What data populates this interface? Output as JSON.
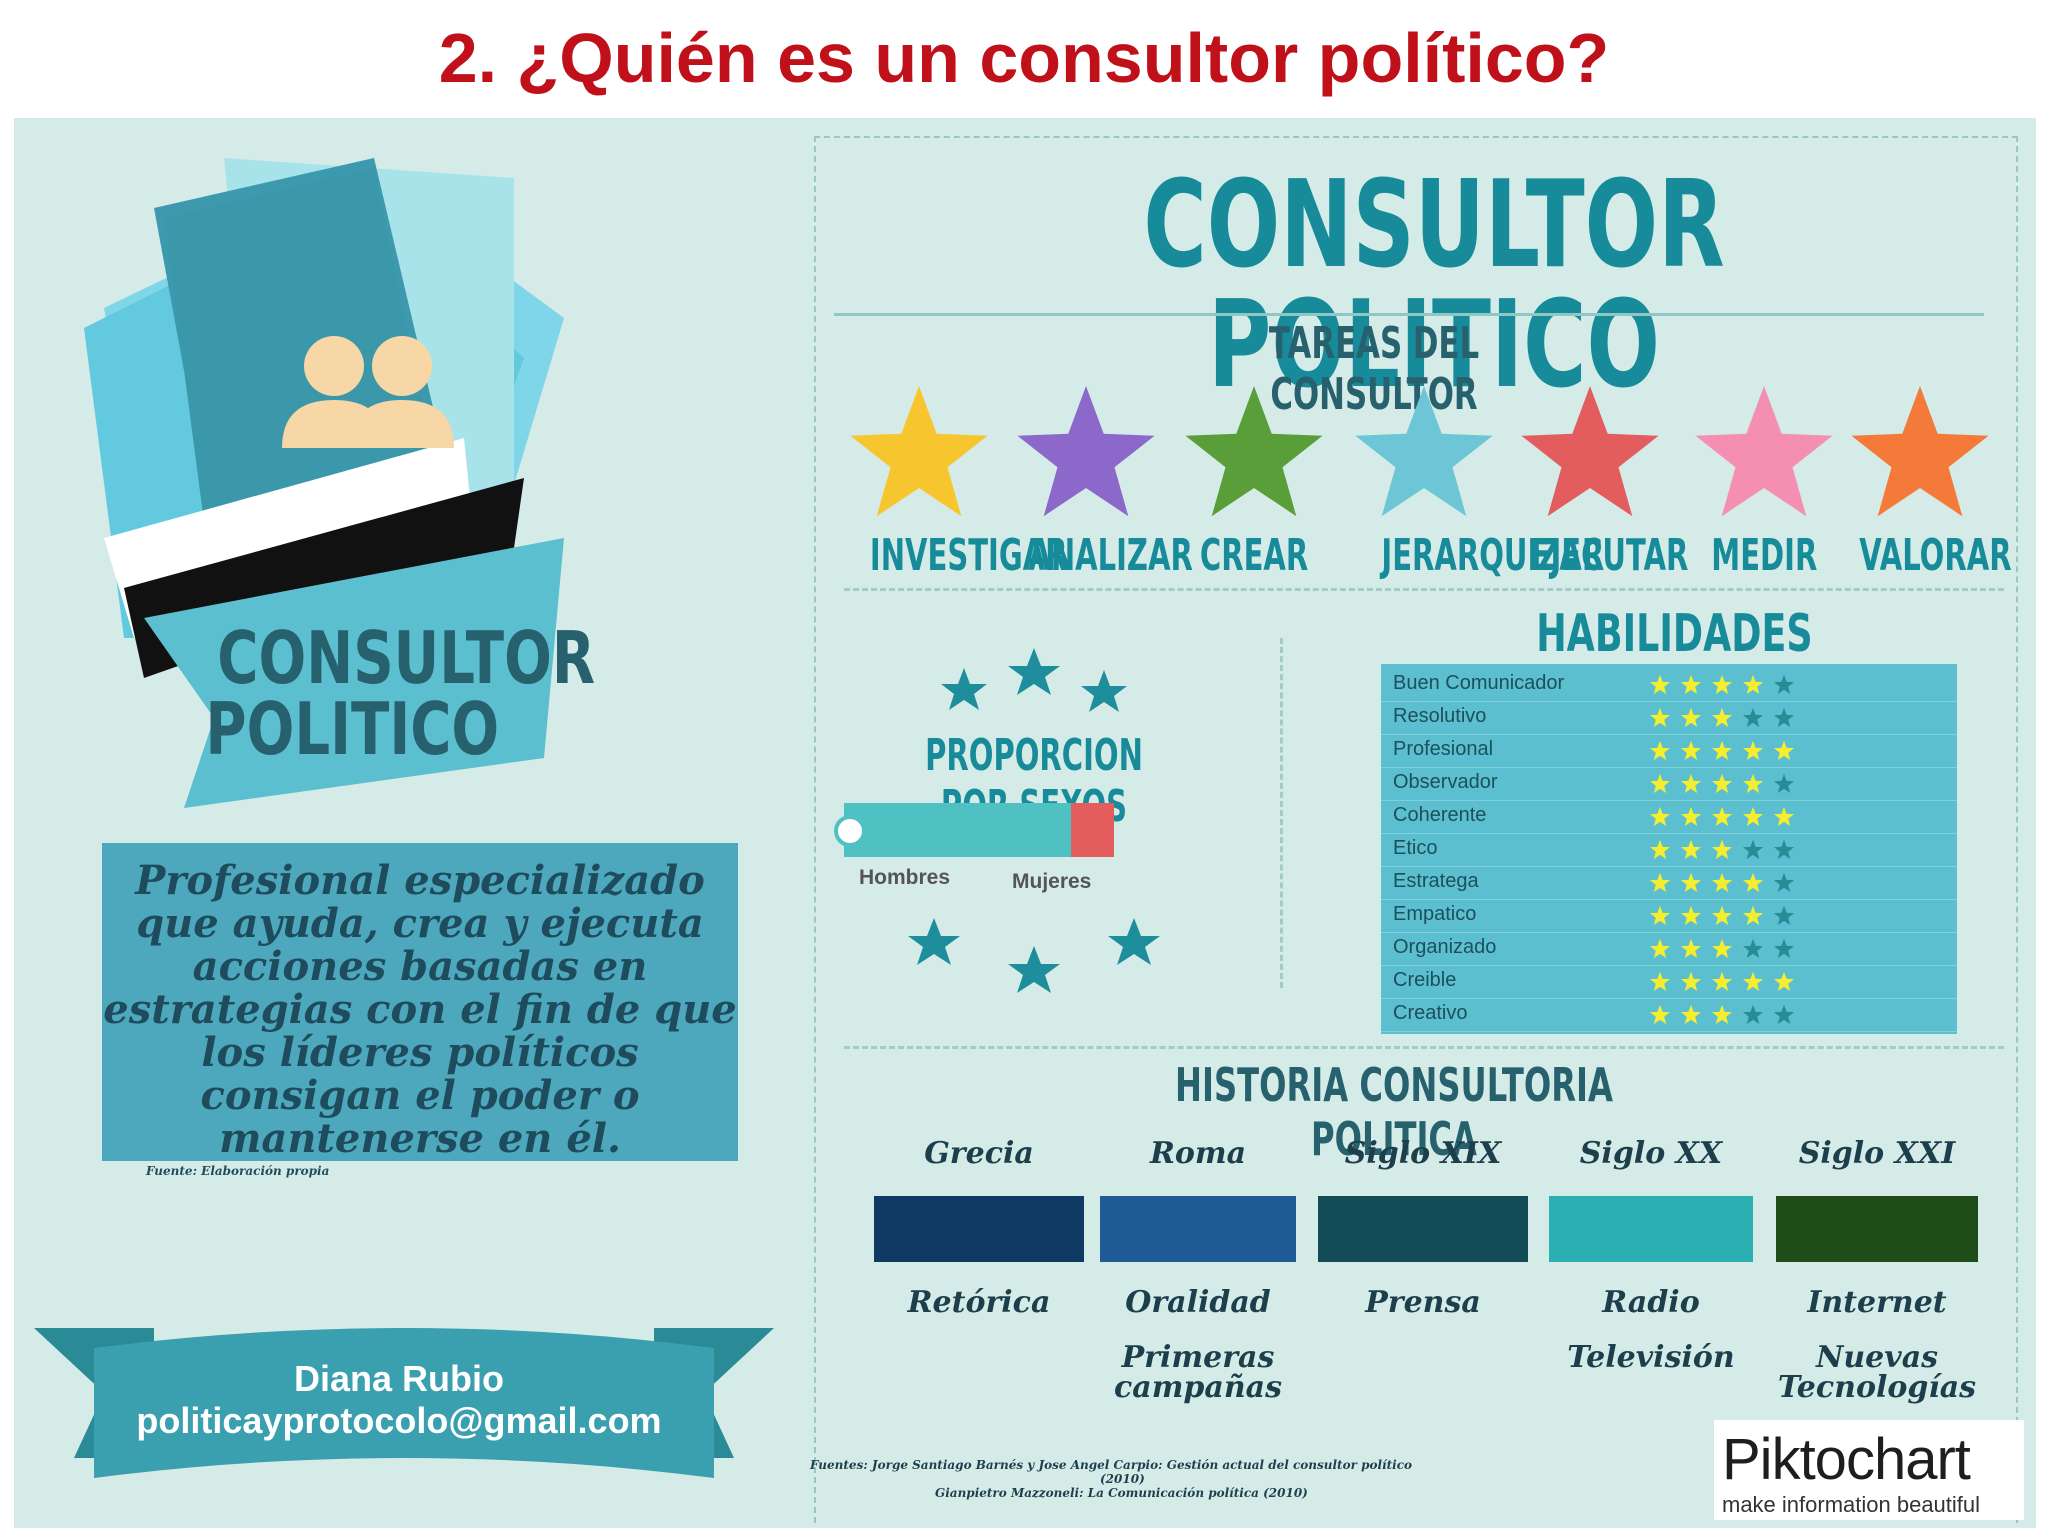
{
  "slide_title": "2. ¿Quién es un consultor político?",
  "left": {
    "folder_title_line1": "CONSULTOR",
    "folder_title_line2": "POLITICO",
    "description_lines": [
      "Profesional especializado",
      "que ayuda, crea y ejecuta",
      "acciones basadas en",
      "estrategias con el fin de que",
      "los líderes políticos",
      "consigan el poder o",
      "mantenerse en él."
    ],
    "source": "Fuente: Elaboración propia",
    "author_name": "Diana Rubio",
    "author_email": "politicayprotocolo@gmail.com"
  },
  "main_title": "CONSULTOR POLITICO",
  "tasks": {
    "heading": "TAREAS DEL CONSULTOR",
    "items": [
      {
        "label": "INVESTIGAR",
        "color": "#f7c62f"
      },
      {
        "label": "ANALIZAR",
        "color": "#8b68c9"
      },
      {
        "label": "CREAR",
        "color": "#5a9e3a"
      },
      {
        "label": "JERARQUIZAR",
        "color": "#6cc6d6"
      },
      {
        "label": "EJECUTAR",
        "color": "#e35d5f"
      },
      {
        "label": "MEDIR",
        "color": "#f48fb1"
      },
      {
        "label": "VALORAR",
        "color": "#f47a3a"
      }
    ]
  },
  "gender": {
    "heading": "PROPORCION POR SEXOS",
    "men_label": "Hombres",
    "women_label": "Mujeres",
    "men_share": 0.84,
    "men_color": "#4fc1c2",
    "women_color": "#e35d5f"
  },
  "skills": {
    "heading": "HABILIDADES",
    "max": 5,
    "items": [
      {
        "name": "Buen Comunicador",
        "rating": 4
      },
      {
        "name": "Resolutivo",
        "rating": 3
      },
      {
        "name": "Profesional",
        "rating": 5
      },
      {
        "name": "Observador",
        "rating": 4
      },
      {
        "name": "Coherente",
        "rating": 5
      },
      {
        "name": "Etico",
        "rating": 3
      },
      {
        "name": "Estratega",
        "rating": 4
      },
      {
        "name": "Empatico",
        "rating": 4
      },
      {
        "name": "Organizado",
        "rating": 3
      },
      {
        "name": "Creible",
        "rating": 5
      },
      {
        "name": "Creativo",
        "rating": 3
      }
    ],
    "filled_color": "#f5ee2e",
    "empty_color": "#2a8a95"
  },
  "history": {
    "heading": "HISTORIA CONSULTORIA POLITICA",
    "periods": [
      {
        "era": "Grecia",
        "lines": [
          "Retórica"
        ],
        "color": "#0f3a64"
      },
      {
        "era": "Roma",
        "lines": [
          "Oralidad",
          "Primeras campañas"
        ],
        "color": "#1f5b94"
      },
      {
        "era": "Siglo XIX",
        "lines": [
          "Prensa"
        ],
        "color": "#124a56"
      },
      {
        "era": "Siglo XX",
        "lines": [
          "Radio",
          "Televisión"
        ],
        "color": "#2ab0b3"
      },
      {
        "era": "Siglo XXI",
        "lines": [
          "Internet",
          "Nuevas Tecnologías"
        ],
        "color": "#1e4d18"
      }
    ]
  },
  "sources": {
    "line1": "Fuentes: Jorge Santiago Barnés y Jose Angel Carpio: Gestión actual del consultor político",
    "line1b": "(2010)",
    "line2": "Gianpietro Mazzoneli: La Comunicación política (2010)"
  },
  "brand": {
    "name": "Piktochart",
    "tagline": "make information beautiful"
  }
}
